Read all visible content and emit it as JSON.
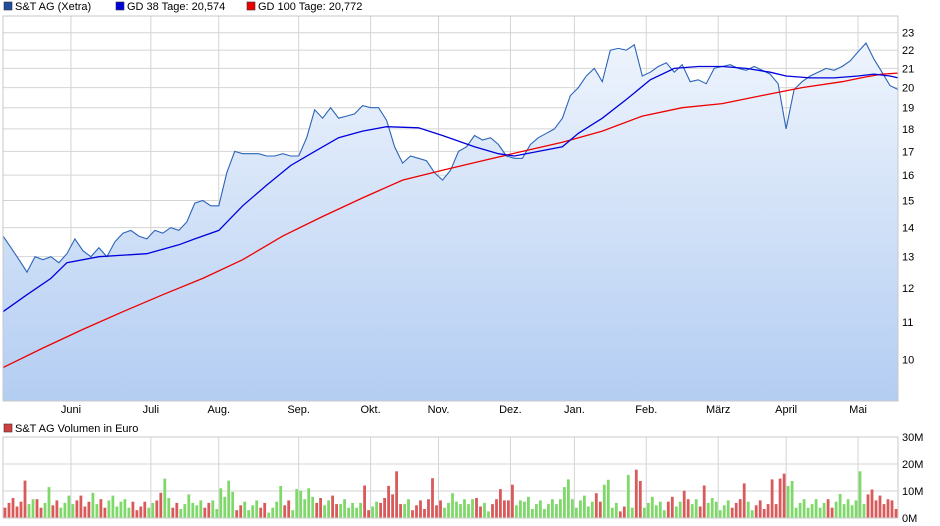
{
  "legend": [
    {
      "label": "S&T AG (Xetra)",
      "color": "#1f4e9c"
    },
    {
      "label": "GD 38 Tage: 20,574",
      "color": "#0000dd"
    },
    {
      "label": "GD 100 Tage: 20,772",
      "color": "#ee0000"
    }
  ],
  "volume_legend": {
    "label": "S&T AG Volumen in Euro",
    "color": "#d04040"
  },
  "colors": {
    "price_line": "#2b64b8",
    "area_top": "#eef4fd",
    "area_bottom": "#b3cdf2",
    "gd38": "#0000dd",
    "gd100": "#ee0000",
    "grid": "#d4d4d4",
    "vol_up": "#7fd96a",
    "vol_down": "#d95a5a"
  },
  "chart_data": [
    {
      "type": "line",
      "title": "",
      "xlabel": "",
      "ylabel": "",
      "scale": "log",
      "ylim": [
        9.0,
        24.0
      ],
      "y_ticks": [
        10,
        11,
        12,
        13,
        14,
        15,
        16,
        17,
        18,
        19,
        20,
        21,
        22,
        23
      ],
      "x_range": [
        0,
        224
      ],
      "x_ticks": [
        {
          "x": 17,
          "label": "Juni"
        },
        {
          "x": 37,
          "label": "Juli"
        },
        {
          "x": 54,
          "label": "Aug."
        },
        {
          "x": 74,
          "label": "Sep."
        },
        {
          "x": 92,
          "label": "Okt."
        },
        {
          "x": 109,
          "label": "Nov."
        },
        {
          "x": 127,
          "label": "Dez."
        },
        {
          "x": 143,
          "label": "Jan."
        },
        {
          "x": 161,
          "label": "Feb."
        },
        {
          "x": 179,
          "label": "März"
        },
        {
          "x": 196,
          "label": "April"
        },
        {
          "x": 214,
          "label": "Mai"
        }
      ],
      "grid": true,
      "series": [
        {
          "name": "S&T AG (Xetra)",
          "points": [
            [
              0,
              13.7
            ],
            [
              2,
              13.3
            ],
            [
              4,
              12.9
            ],
            [
              6,
              12.5
            ],
            [
              8,
              13.0
            ],
            [
              10,
              12.9
            ],
            [
              12,
              13.0
            ],
            [
              14,
              12.8
            ],
            [
              16,
              13.1
            ],
            [
              18,
              13.6
            ],
            [
              20,
              13.2
            ],
            [
              22,
              13.0
            ],
            [
              24,
              13.3
            ],
            [
              26,
              13.0
            ],
            [
              28,
              13.5
            ],
            [
              30,
              13.8
            ],
            [
              32,
              13.9
            ],
            [
              34,
              13.7
            ],
            [
              36,
              13.6
            ],
            [
              38,
              13.9
            ],
            [
              40,
              13.8
            ],
            [
              42,
              14.0
            ],
            [
              44,
              13.9
            ],
            [
              46,
              14.2
            ],
            [
              48,
              14.9
            ],
            [
              50,
              15.0
            ],
            [
              52,
              14.8
            ],
            [
              54,
              14.8
            ],
            [
              56,
              16.1
            ],
            [
              58,
              17.0
            ],
            [
              60,
              16.9
            ],
            [
              62,
              16.9
            ],
            [
              64,
              16.9
            ],
            [
              66,
              16.8
            ],
            [
              68,
              16.8
            ],
            [
              70,
              16.9
            ],
            [
              72,
              16.8
            ],
            [
              74,
              16.8
            ],
            [
              76,
              17.6
            ],
            [
              78,
              18.9
            ],
            [
              80,
              18.5
            ],
            [
              82,
              19.0
            ],
            [
              84,
              18.5
            ],
            [
              86,
              18.6
            ],
            [
              88,
              18.7
            ],
            [
              90,
              19.1
            ],
            [
              92,
              19.0
            ],
            [
              94,
              19.0
            ],
            [
              96,
              18.4
            ],
            [
              98,
              17.2
            ],
            [
              100,
              16.5
            ],
            [
              102,
              16.8
            ],
            [
              104,
              16.7
            ],
            [
              106,
              16.6
            ],
            [
              108,
              16.1
            ],
            [
              110,
              15.8
            ],
            [
              112,
              16.2
            ],
            [
              114,
              17.0
            ],
            [
              116,
              17.2
            ],
            [
              118,
              17.7
            ],
            [
              120,
              17.5
            ],
            [
              122,
              17.6
            ],
            [
              124,
              17.3
            ],
            [
              126,
              16.8
            ],
            [
              128,
              16.7
            ],
            [
              130,
              16.7
            ],
            [
              132,
              17.3
            ],
            [
              134,
              17.6
            ],
            [
              136,
              17.8
            ],
            [
              138,
              18.0
            ],
            [
              140,
              18.5
            ],
            [
              142,
              19.6
            ],
            [
              144,
              20.0
            ],
            [
              146,
              20.6
            ],
            [
              148,
              21.0
            ],
            [
              150,
              20.3
            ],
            [
              152,
              22.0
            ],
            [
              154,
              22.1
            ],
            [
              156,
              22.0
            ],
            [
              158,
              22.3
            ],
            [
              160,
              20.6
            ],
            [
              162,
              20.8
            ],
            [
              164,
              21.1
            ],
            [
              166,
              21.3
            ],
            [
              168,
              20.8
            ],
            [
              170,
              21.2
            ],
            [
              172,
              20.3
            ],
            [
              174,
              20.4
            ],
            [
              176,
              20.2
            ],
            [
              178,
              21.0
            ],
            [
              180,
              21.1
            ],
            [
              182,
              21.2
            ],
            [
              184,
              21.0
            ],
            [
              186,
              20.9
            ],
            [
              188,
              21.1
            ],
            [
              190,
              20.9
            ],
            [
              192,
              20.7
            ],
            [
              194,
              20.2
            ],
            [
              196,
              18.0
            ],
            [
              198,
              19.9
            ],
            [
              200,
              20.3
            ],
            [
              202,
              20.6
            ],
            [
              204,
              20.8
            ],
            [
              206,
              21.0
            ],
            [
              208,
              20.9
            ],
            [
              210,
              21.1
            ],
            [
              212,
              21.4
            ],
            [
              214,
              21.9
            ],
            [
              216,
              22.4
            ],
            [
              218,
              21.5
            ],
            [
              220,
              20.8
            ],
            [
              222,
              20.1
            ],
            [
              224,
              19.9
            ]
          ]
        },
        {
          "name": "GD 38 Tage: 20,574",
          "points": [
            [
              0,
              11.3
            ],
            [
              6,
              11.8
            ],
            [
              12,
              12.3
            ],
            [
              16,
              12.8
            ],
            [
              24,
              13.0
            ],
            [
              36,
              13.1
            ],
            [
              44,
              13.4
            ],
            [
              48,
              13.6
            ],
            [
              54,
              13.9
            ],
            [
              60,
              14.8
            ],
            [
              66,
              15.6
            ],
            [
              72,
              16.4
            ],
            [
              78,
              17.0
            ],
            [
              84,
              17.6
            ],
            [
              90,
              17.9
            ],
            [
              96,
              18.1
            ],
            [
              104,
              18.05
            ],
            [
              110,
              17.7
            ],
            [
              118,
              17.2
            ],
            [
              124,
              16.9
            ],
            [
              128,
              16.8
            ],
            [
              134,
              17.0
            ],
            [
              140,
              17.2
            ],
            [
              144,
              17.8
            ],
            [
              150,
              18.5
            ],
            [
              156,
              19.4
            ],
            [
              162,
              20.4
            ],
            [
              168,
              21.0
            ],
            [
              174,
              21.1
            ],
            [
              180,
              21.1
            ],
            [
              186,
              21.0
            ],
            [
              192,
              20.8
            ],
            [
              196,
              20.6
            ],
            [
              202,
              20.5
            ],
            [
              208,
              20.5
            ],
            [
              214,
              20.6
            ],
            [
              218,
              20.7
            ],
            [
              222,
              20.6
            ],
            [
              224,
              20.5
            ]
          ]
        },
        {
          "name": "GD 100 Tage: 20,772",
          "points": [
            [
              0,
              9.8
            ],
            [
              10,
              10.3
            ],
            [
              20,
              10.8
            ],
            [
              30,
              11.3
            ],
            [
              40,
              11.8
            ],
            [
              50,
              12.3
            ],
            [
              60,
              12.9
            ],
            [
              70,
              13.7
            ],
            [
              80,
              14.4
            ],
            [
              90,
              15.1
            ],
            [
              100,
              15.8
            ],
            [
              110,
              16.2
            ],
            [
              120,
              16.6
            ],
            [
              130,
              17.0
            ],
            [
              140,
              17.4
            ],
            [
              150,
              17.9
            ],
            [
              160,
              18.6
            ],
            [
              170,
              19.0
            ],
            [
              180,
              19.2
            ],
            [
              190,
              19.6
            ],
            [
              200,
              20.0
            ],
            [
              210,
              20.3
            ],
            [
              216,
              20.55
            ],
            [
              220,
              20.7
            ],
            [
              224,
              20.75
            ]
          ]
        }
      ]
    },
    {
      "type": "bar",
      "title": "S&T AG Volumen in Euro",
      "ylim": [
        0,
        30
      ],
      "y_unit": "M",
      "y_ticks": [
        {
          "value": 0,
          "label": "0M"
        },
        {
          "value": 10,
          "label": "10M"
        },
        {
          "value": 20,
          "label": "20M"
        },
        {
          "value": 30,
          "label": "30M"
        }
      ],
      "series": [
        {
          "name": "S&T AG Volumen in Euro",
          "description": "daily volume in Euro (M); direction follows price change of the day"
        }
      ]
    }
  ]
}
